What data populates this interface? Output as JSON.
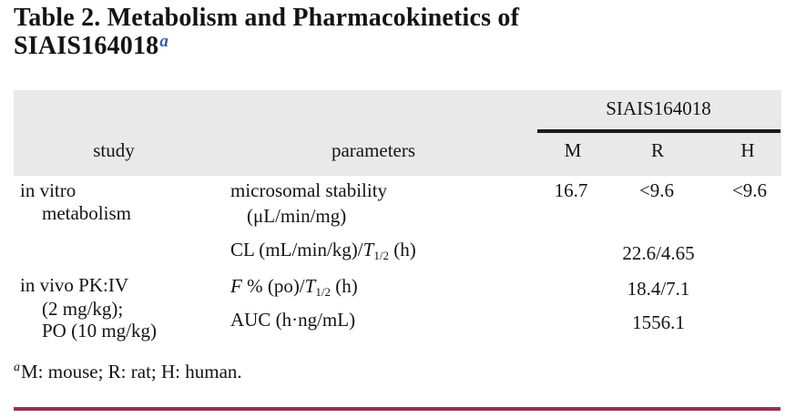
{
  "colors": {
    "header_band_bg": "#e9e9e9",
    "span_rule": "#1b1b1b",
    "bottom_rule": "#9d2c50",
    "title_superscript": "#2e5cb8",
    "text": "#141414"
  },
  "title": {
    "line1": "Table 2. Metabolism and Pharmacokinetics of",
    "line2": "SIAIS164018",
    "sup": "a"
  },
  "table": {
    "span_header": "SIAIS164018",
    "columns": {
      "study": "study",
      "parameters": "parameters",
      "m": "M",
      "r": "R",
      "h": "H"
    },
    "rows": {
      "study_group1": {
        "line1": "in vitro",
        "line2": "metabolism"
      },
      "row1": {
        "param_line1": "microsomal stability",
        "param_line2": "(μL/min/mg)",
        "m": "16.7",
        "r": "<9.6",
        "h": "<9.6"
      },
      "row2": {
        "param_prefix": "CL (mL/min/kg)/",
        "param_t": "T",
        "param_sub": "1/2",
        "param_suffix": " (h)",
        "merged_value": "22.6/4.65"
      },
      "study_group2": {
        "line1": "in vivo PK:IV",
        "line2": "(2 mg/kg);",
        "line3": "PO (10 mg/kg)"
      },
      "row3": {
        "param_f": "F",
        "param_mid": " % (po)/",
        "param_t": "T",
        "param_sub": "1/2",
        "param_suffix": " (h)",
        "merged_value": "18.4/7.1"
      },
      "row4": {
        "param": "AUC (h·ng/mL)",
        "merged_value": "1556.1"
      }
    }
  },
  "footnote": {
    "sup": "a",
    "text": "M: mouse; R: rat; H: human."
  }
}
